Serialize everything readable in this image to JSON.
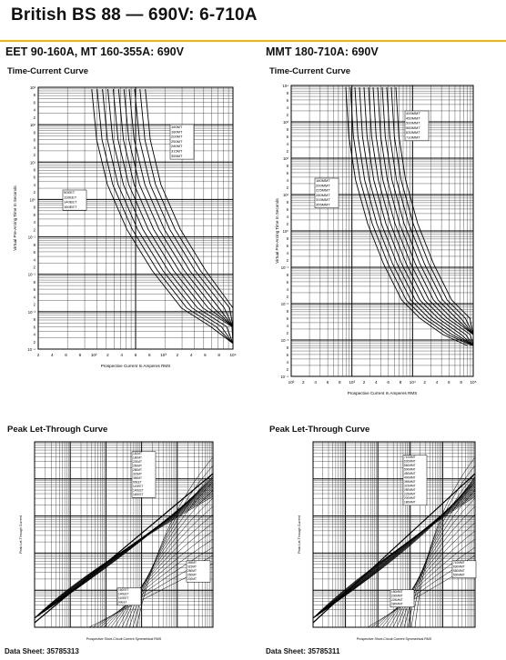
{
  "header": {
    "title": "British BS 88 — 690V:  6-710A",
    "accent_color": "#f2b400"
  },
  "left": {
    "section_title": "EET 90-160A, MT 160-355A: 690V",
    "tcc_title": "Time-Current Curve",
    "plt_title": "Peak Let-Through Curve",
    "data_sheet": "Data Sheet: 35785313",
    "tcc": {
      "ylabel": "Virtual Pre-Arcing Time In Seconds",
      "xlabel": "Prospective Current In Amperes RMS",
      "y_ticks": [
        "10³",
        "8",
        "6",
        "4",
        "2",
        "10²",
        "8",
        "6",
        "4",
        "2",
        "10¹",
        "8",
        "6",
        "4",
        "2",
        "10⁰",
        "8",
        "6",
        "4",
        "2",
        "10⁻¹",
        "8",
        "6",
        "4",
        "2",
        "10⁻²",
        "8",
        "6",
        "4",
        "2",
        "10⁻³",
        "8",
        "6",
        "4",
        "2",
        "10⁻⁴"
      ],
      "x_ticks": [
        "2",
        "4",
        "6",
        "8",
        "10²",
        "2",
        "4",
        "6",
        "8",
        "10³",
        "2",
        "4",
        "6",
        "8",
        "10⁴"
      ],
      "labels_upper": [
        "160MT",
        "180MT",
        "200MT",
        "250MT",
        "280MT",
        "315MT",
        "355MT"
      ],
      "labels_lower": [
        "90EET",
        "110EET",
        "140EET",
        "160EET"
      ]
    },
    "plt": {
      "ylabel": "Peak Let-Through Current",
      "xlabel": "Prospective Short-Circuit Current Symmetrical RMS",
      "labels_upper": [
        "160MT",
        "180MT",
        "200MT",
        "250MT",
        "280MT",
        "315MT",
        "355MT",
        "90EET",
        "110EET",
        "140EET",
        "160EET"
      ],
      "labels_lower": [
        "160EET",
        "140EET",
        "110EET",
        "90EET"
      ],
      "labels_right": [
        "355MT",
        "315MT",
        "280MT",
        "250MT",
        "200MT"
      ]
    }
  },
  "right": {
    "section_title": "MMT 180-710A: 690V",
    "tcc_title": "Time-Current Curve",
    "plt_title": "Peak Let-Through Curve",
    "data_sheet": "Data Sheet: 35785311",
    "tcc": {
      "ylabel": "Virtual Pre-Arcing Time In Seconds",
      "xlabel": "Prospective Current In Amperes RMS",
      "y_ticks": [
        "10⁴",
        "8",
        "6",
        "4",
        "2",
        "10³",
        "8",
        "6",
        "4",
        "2",
        "10²",
        "8",
        "6",
        "4",
        "2",
        "10¹",
        "8",
        "6",
        "4",
        "2",
        "10⁰",
        "8",
        "6",
        "4",
        "2",
        "10⁻¹",
        "8",
        "6",
        "4",
        "2",
        "10⁻²",
        "8",
        "6",
        "4",
        "2",
        "10⁻³",
        "8",
        "6",
        "4",
        "2",
        "10⁻⁴"
      ],
      "x_ticks": [
        "10²",
        "2",
        "4",
        "6",
        "8",
        "10³",
        "2",
        "4",
        "6",
        "8",
        "10⁴",
        "2",
        "4",
        "6",
        "8",
        "10⁵"
      ],
      "labels_upper": [
        "400MMT",
        "450MMT",
        "500MMT",
        "560MMT",
        "630MMT",
        "710MMT"
      ],
      "labels_lower": [
        "180MMT",
        "200MMT",
        "225MMT",
        "280MMT",
        "315MMT",
        "355MMT"
      ]
    },
    "plt": {
      "ylabel": "Peak Let-Through Current",
      "xlabel": "Prospective Short-Circuit Current Symmetrical RMS",
      "labels_upper": [
        "710MMT",
        "630MMT",
        "560MMT",
        "500MMT",
        "450MMT",
        "400MMT",
        "355MMT",
        "315MMT",
        "280MMT",
        "225MMT",
        "200MMT",
        "180MMT"
      ],
      "labels_lower": [
        "180MMT",
        "200MMT",
        "225MMT",
        "280MMT"
      ],
      "labels_right": [
        "710MMT",
        "630MMT",
        "560MMT",
        "500MMT"
      ]
    }
  }
}
